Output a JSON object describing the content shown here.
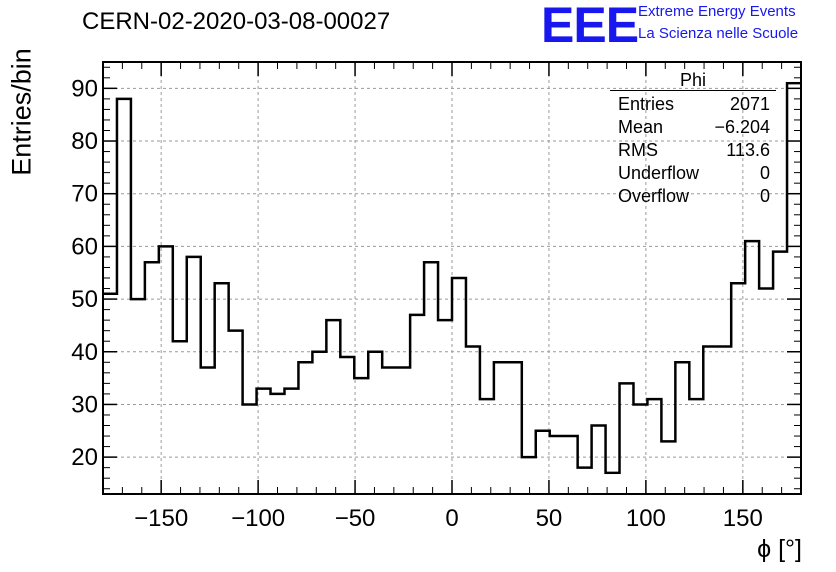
{
  "title": "CERN-02-2020-03-08-00027",
  "logo": {
    "mark": "EEE",
    "line1": "Extreme Energy Events",
    "line2": "La Scienza nelle Scuole",
    "color": "#1818ee"
  },
  "stats": {
    "title": "Phi",
    "rows": [
      {
        "label": "Entries",
        "value": "2071"
      },
      {
        "label": "Mean",
        "value": "−6.204"
      },
      {
        "label": "RMS",
        "value": "113.6"
      },
      {
        "label": "Underflow",
        "value": "0"
      },
      {
        "label": "Overflow",
        "value": "0"
      }
    ]
  },
  "chart_data": {
    "type": "bar",
    "style": "histogram-step",
    "xlabel": "ϕ [°]",
    "ylabel": "Entries/bin",
    "xlim": [
      -180,
      180
    ],
    "ylim": [
      13,
      95
    ],
    "bin_width": 7.2,
    "grid": true,
    "x_ticks": [
      -150,
      -100,
      -50,
      0,
      50,
      100,
      150
    ],
    "x_tick_labels": [
      "−150",
      "−100",
      "−50",
      "0",
      "50",
      "100",
      "150"
    ],
    "y_ticks": [
      20,
      30,
      40,
      50,
      60,
      70,
      80,
      90
    ],
    "y_tick_labels": [
      "20",
      "30",
      "40",
      "50",
      "60",
      "70",
      "80",
      "90"
    ],
    "values": [
      51,
      88,
      50,
      57,
      60,
      42,
      58,
      37,
      53,
      44,
      30,
      33,
      32,
      33,
      38,
      40,
      46,
      39,
      35,
      40,
      37,
      37,
      47,
      57,
      46,
      54,
      41,
      31,
      38,
      38,
      20,
      25,
      24,
      24,
      18,
      26,
      17,
      34,
      30,
      31,
      23,
      38,
      31,
      41,
      41,
      53,
      61,
      52,
      59,
      91
    ]
  }
}
